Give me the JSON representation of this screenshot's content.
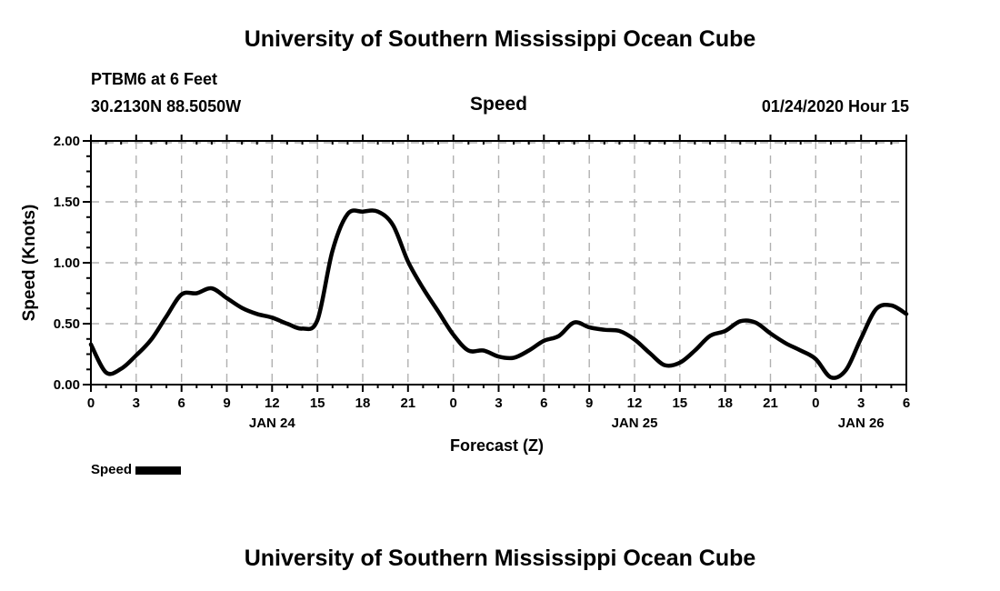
{
  "header": {
    "title": "University of Southern Mississippi Ocean Cube",
    "station": "PTBM6 at 6 Feet",
    "coordinates": "30.2130N 88.5050W",
    "plot_name": "Speed",
    "run_info": "01/24/2020 Hour 15"
  },
  "footer": {
    "title": "University of Southern Mississippi Ocean Cube"
  },
  "legend": {
    "label": "Speed",
    "swatch_color": "#000000"
  },
  "chart_data": {
    "type": "line",
    "title": "Speed",
    "xlabel": "Forecast (Z)",
    "ylabel": "Speed (Knots)",
    "series_name": "Speed",
    "line_color": "#000000",
    "grid_color": "#b0b0b0",
    "grid": true,
    "xlim": [
      0,
      54
    ],
    "ylim": [
      0,
      2
    ],
    "hours": [
      0,
      1,
      2,
      3,
      4,
      5,
      6,
      7,
      8,
      9,
      10,
      11,
      12,
      13,
      14,
      15,
      16,
      17,
      18,
      19,
      20,
      21,
      22,
      23,
      24,
      25,
      26,
      27,
      28,
      29,
      30,
      31,
      32,
      33,
      34,
      35,
      36,
      37,
      38,
      39,
      40,
      41,
      42,
      43,
      44,
      45,
      46,
      47,
      48,
      49,
      50,
      51,
      52,
      53,
      54
    ],
    "values": [
      0.33,
      0.1,
      0.13,
      0.24,
      0.37,
      0.56,
      0.74,
      0.75,
      0.79,
      0.71,
      0.63,
      0.58,
      0.55,
      0.5,
      0.46,
      0.53,
      1.1,
      1.4,
      1.42,
      1.42,
      1.31,
      1.01,
      0.79,
      0.6,
      0.41,
      0.28,
      0.28,
      0.23,
      0.22,
      0.28,
      0.36,
      0.4,
      0.51,
      0.47,
      0.45,
      0.44,
      0.37,
      0.26,
      0.16,
      0.18,
      0.28,
      0.4,
      0.44,
      0.52,
      0.51,
      0.42,
      0.34,
      0.28,
      0.21,
      0.06,
      0.12,
      0.38,
      0.62,
      0.65,
      0.58
    ],
    "yticks": [
      {
        "v": 0.0,
        "label": "0.00"
      },
      {
        "v": 0.5,
        "label": "0.50"
      },
      {
        "v": 1.0,
        "label": "1.00"
      },
      {
        "v": 1.5,
        "label": "1.50"
      },
      {
        "v": 2.0,
        "label": "2.00"
      }
    ],
    "y_minor_step": 0.125,
    "x_minor_step": 1,
    "xticks": [
      {
        "hour": 0,
        "label": "0"
      },
      {
        "hour": 3,
        "label": "3"
      },
      {
        "hour": 6,
        "label": "6"
      },
      {
        "hour": 9,
        "label": "9"
      },
      {
        "hour": 12,
        "label": "12"
      },
      {
        "hour": 15,
        "label": "15"
      },
      {
        "hour": 18,
        "label": "18"
      },
      {
        "hour": 21,
        "label": "21"
      },
      {
        "hour": 24,
        "label": "0"
      },
      {
        "hour": 27,
        "label": "3"
      },
      {
        "hour": 30,
        "label": "6"
      },
      {
        "hour": 33,
        "label": "9"
      },
      {
        "hour": 36,
        "label": "12"
      },
      {
        "hour": 39,
        "label": "15"
      },
      {
        "hour": 42,
        "label": "18"
      },
      {
        "hour": 45,
        "label": "21"
      },
      {
        "hour": 48,
        "label": "0"
      },
      {
        "hour": 51,
        "label": "3"
      },
      {
        "hour": 54,
        "label": "6"
      }
    ],
    "day_labels": [
      {
        "label": "JAN 24",
        "hour": 12
      },
      {
        "label": "JAN 25",
        "hour": 36
      },
      {
        "label": "JAN 26",
        "hour": 51
      }
    ]
  }
}
